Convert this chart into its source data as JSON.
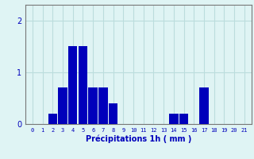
{
  "categories": [
    0,
    1,
    2,
    3,
    4,
    5,
    6,
    7,
    8,
    9,
    10,
    11,
    12,
    13,
    14,
    15,
    16,
    17,
    18,
    19,
    20,
    21
  ],
  "values": [
    0,
    0,
    0.2,
    0.7,
    1.5,
    1.5,
    0.7,
    0.7,
    0.4,
    0,
    0,
    0,
    0,
    0,
    0.2,
    0.2,
    0,
    0.7,
    0,
    0,
    0,
    0
  ],
  "bar_color": "#0000bb",
  "background_color": "#dff4f4",
  "grid_color": "#bbdddd",
  "xlabel": "Précipitations 1h ( mm )",
  "ylim": [
    0,
    2.3
  ],
  "yticks": [
    0,
    1,
    2
  ],
  "xlabel_color": "#0000bb",
  "tick_color": "#0000bb",
  "axis_color": "#777777"
}
